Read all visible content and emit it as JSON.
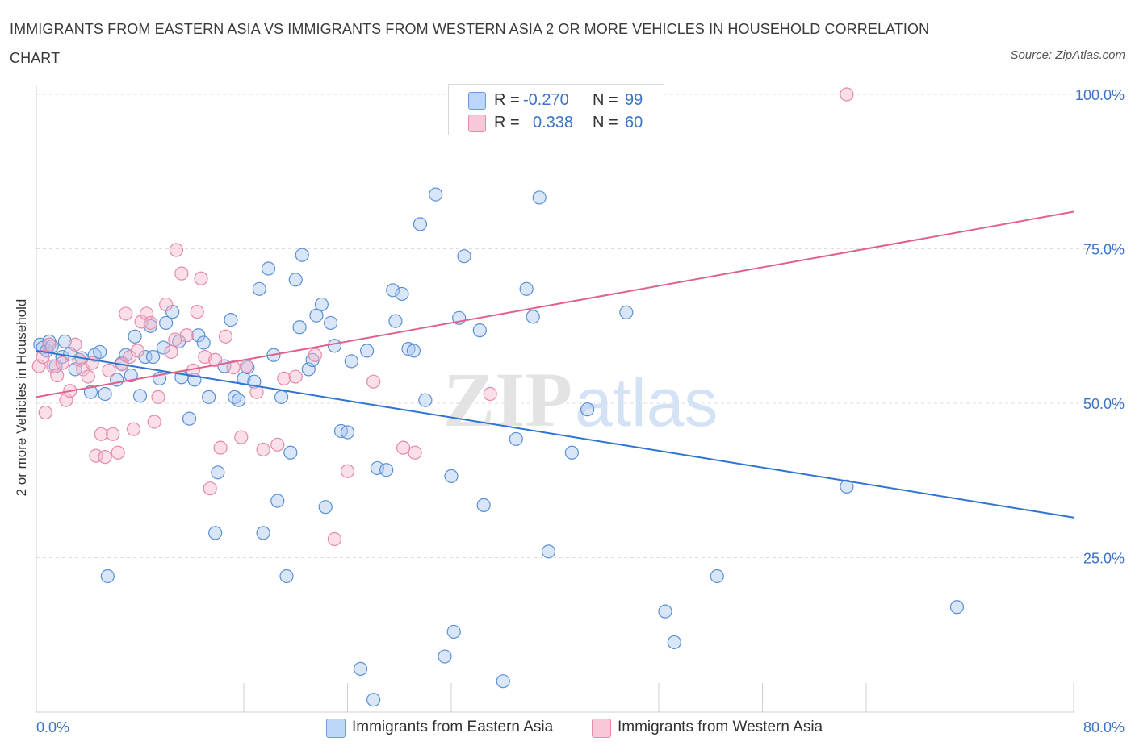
{
  "title": "IMMIGRANTS FROM EASTERN ASIA VS IMMIGRANTS FROM WESTERN ASIA 2 OR MORE VEHICLES IN HOUSEHOLD CORRELATION CHART",
  "source": "Source: ZipAtlas.com",
  "watermark": {
    "zip": "ZIP",
    "atlas": "atlas"
  },
  "legend": {
    "r_label": "R =",
    "n_label": "N =",
    "series": [
      {
        "r": "-0.270",
        "n": "99"
      },
      {
        "r": "0.338",
        "n": "60"
      }
    ]
  },
  "colors": {
    "blue_fill": "#a8c8f0",
    "blue_stroke": "#5b8fd6",
    "blue_line": "#2f74d0",
    "pink_fill": "#f5b8cc",
    "pink_stroke": "#e58aa8",
    "pink_line": "#e0628c",
    "tick_text": "#3a73c8",
    "grid": "#dedede"
  },
  "chart_data": {
    "type": "scatter",
    "title": "IMMIGRANTS FROM EASTERN ASIA VS IMMIGRANTS FROM WESTERN ASIA 2 OR MORE VEHICLES IN HOUSEHOLD CORRELATION CHART",
    "xlabel": "",
    "ylabel": "2 or more Vehicles in Household",
    "xlim": [
      0,
      80
    ],
    "ylim": [
      0,
      100
    ],
    "x_tick_labels": [
      "0.0%",
      "80.0%"
    ],
    "y_ticks": [
      25,
      50,
      75,
      100
    ],
    "y_tick_labels": [
      "25.0%",
      "50.0%",
      "75.0%",
      "100.0%"
    ],
    "grid": true,
    "legend_position": "top-center",
    "series": [
      {
        "name": "Immigrants from Eastern Asia",
        "color": "#a8c8f0",
        "trend": {
          "x": [
            0,
            80
          ],
          "y": [
            58.5,
            31.5
          ]
        },
        "points": [
          [
            0.3,
            59.5
          ],
          [
            0.5,
            59
          ],
          [
            0.8,
            58.5
          ],
          [
            1.0,
            60
          ],
          [
            1.2,
            59.2
          ],
          [
            1.5,
            56
          ],
          [
            2.0,
            57.5
          ],
          [
            2.2,
            60
          ],
          [
            2.6,
            58
          ],
          [
            3.0,
            55.5
          ],
          [
            3.5,
            57.3
          ],
          [
            4.2,
            51.8
          ],
          [
            4.5,
            57.8
          ],
          [
            4.9,
            58.3
          ],
          [
            5.3,
            51.5
          ],
          [
            5.5,
            22
          ],
          [
            6.2,
            53.8
          ],
          [
            6.6,
            56.5
          ],
          [
            6.9,
            57.8
          ],
          [
            7.3,
            54.5
          ],
          [
            7.6,
            60.8
          ],
          [
            8.0,
            51.2
          ],
          [
            8.4,
            57.5
          ],
          [
            8.8,
            62.5
          ],
          [
            9.0,
            57.5
          ],
          [
            9.5,
            54
          ],
          [
            9.8,
            59
          ],
          [
            10.0,
            63
          ],
          [
            10.5,
            64.8
          ],
          [
            11.0,
            60
          ],
          [
            11.2,
            54.2
          ],
          [
            11.8,
            47.5
          ],
          [
            12.2,
            53.8
          ],
          [
            12.5,
            61
          ],
          [
            12.9,
            59.8
          ],
          [
            13.3,
            51
          ],
          [
            13.8,
            29
          ],
          [
            14.0,
            38.8
          ],
          [
            14.5,
            56
          ],
          [
            15.0,
            63.5
          ],
          [
            15.3,
            51
          ],
          [
            15.6,
            50.5
          ],
          [
            16.0,
            54
          ],
          [
            16.3,
            55.8
          ],
          [
            16.8,
            53.5
          ],
          [
            17.2,
            68.5
          ],
          [
            17.5,
            29
          ],
          [
            17.9,
            71.8
          ],
          [
            18.3,
            57.8
          ],
          [
            18.6,
            34.2
          ],
          [
            18.9,
            51
          ],
          [
            19.3,
            22
          ],
          [
            19.6,
            42
          ],
          [
            20.0,
            70
          ],
          [
            20.3,
            62.3
          ],
          [
            20.5,
            74
          ],
          [
            21.0,
            55.5
          ],
          [
            21.3,
            57
          ],
          [
            21.6,
            64.2
          ],
          [
            22.0,
            66
          ],
          [
            22.3,
            33.2
          ],
          [
            22.7,
            63
          ],
          [
            23.0,
            59.3
          ],
          [
            23.5,
            45.5
          ],
          [
            24.0,
            45.3
          ],
          [
            24.3,
            56.8
          ],
          [
            25.0,
            7
          ],
          [
            25.5,
            58.5
          ],
          [
            26.0,
            2
          ],
          [
            26.3,
            39.5
          ],
          [
            27.0,
            39.2
          ],
          [
            27.5,
            68.3
          ],
          [
            27.7,
            63.3
          ],
          [
            28.2,
            67.7
          ],
          [
            28.7,
            58.8
          ],
          [
            29.1,
            58.5
          ],
          [
            29.6,
            79
          ],
          [
            30.0,
            50.5
          ],
          [
            30.8,
            83.8
          ],
          [
            31.5,
            9
          ],
          [
            32.0,
            38.2
          ],
          [
            32.2,
            13
          ],
          [
            32.6,
            63.8
          ],
          [
            33.0,
            73.8
          ],
          [
            34.2,
            61.8
          ],
          [
            34.5,
            33.5
          ],
          [
            36.0,
            5
          ],
          [
            37.0,
            44.2
          ],
          [
            37.8,
            68.5
          ],
          [
            38.3,
            64
          ],
          [
            38.8,
            83.3
          ],
          [
            39.5,
            26
          ],
          [
            41.3,
            42
          ],
          [
            42.5,
            49
          ],
          [
            45.5,
            64.7
          ],
          [
            48.5,
            16.3
          ],
          [
            49.2,
            11.3
          ],
          [
            52.5,
            22
          ],
          [
            62.5,
            36.5
          ],
          [
            71.0,
            17
          ]
        ]
      },
      {
        "name": "Immigrants from Western Asia",
        "color": "#f5b8cc",
        "trend": {
          "x": [
            0,
            80
          ],
          "y": [
            51,
            81
          ]
        },
        "points": [
          [
            0.2,
            56
          ],
          [
            0.5,
            57.5
          ],
          [
            0.7,
            48.5
          ],
          [
            1.0,
            59.5
          ],
          [
            1.3,
            56
          ],
          [
            1.6,
            54.5
          ],
          [
            2.0,
            56.5
          ],
          [
            2.3,
            50.5
          ],
          [
            2.6,
            52
          ],
          [
            3.0,
            59.5
          ],
          [
            3.3,
            57
          ],
          [
            3.6,
            55.5
          ],
          [
            4.0,
            54.3
          ],
          [
            4.3,
            56.5
          ],
          [
            4.6,
            41.5
          ],
          [
            5.0,
            45
          ],
          [
            5.3,
            41.3
          ],
          [
            5.6,
            55.3
          ],
          [
            5.9,
            45
          ],
          [
            6.3,
            42
          ],
          [
            6.6,
            56.3
          ],
          [
            6.9,
            64.5
          ],
          [
            7.2,
            57.5
          ],
          [
            7.5,
            45.8
          ],
          [
            7.8,
            58.5
          ],
          [
            8.1,
            63.2
          ],
          [
            8.5,
            64.5
          ],
          [
            8.8,
            63
          ],
          [
            9.1,
            47
          ],
          [
            9.4,
            51
          ],
          [
            10.0,
            66
          ],
          [
            10.4,
            58.3
          ],
          [
            10.7,
            60.3
          ],
          [
            10.8,
            74.8
          ],
          [
            11.2,
            71
          ],
          [
            11.6,
            61
          ],
          [
            12.1,
            55.3
          ],
          [
            12.4,
            64.8
          ],
          [
            12.7,
            70.2
          ],
          [
            13.0,
            57.5
          ],
          [
            13.4,
            36.2
          ],
          [
            13.8,
            57
          ],
          [
            14.2,
            42.8
          ],
          [
            14.6,
            60.8
          ],
          [
            15.2,
            55.8
          ],
          [
            15.8,
            44.5
          ],
          [
            16.2,
            56
          ],
          [
            17.0,
            51.8
          ],
          [
            17.5,
            42.5
          ],
          [
            18.6,
            43.3
          ],
          [
            19.1,
            54
          ],
          [
            20.0,
            54.3
          ],
          [
            21.5,
            57.8
          ],
          [
            23.0,
            28
          ],
          [
            24.0,
            39
          ],
          [
            26.0,
            53.5
          ],
          [
            28.3,
            42.8
          ],
          [
            29.2,
            42
          ],
          [
            35.0,
            51.5
          ],
          [
            62.5,
            100
          ]
        ]
      }
    ]
  },
  "bottom_legend": [
    "Immigrants from Eastern Asia",
    "Immigrants from Western Asia"
  ]
}
